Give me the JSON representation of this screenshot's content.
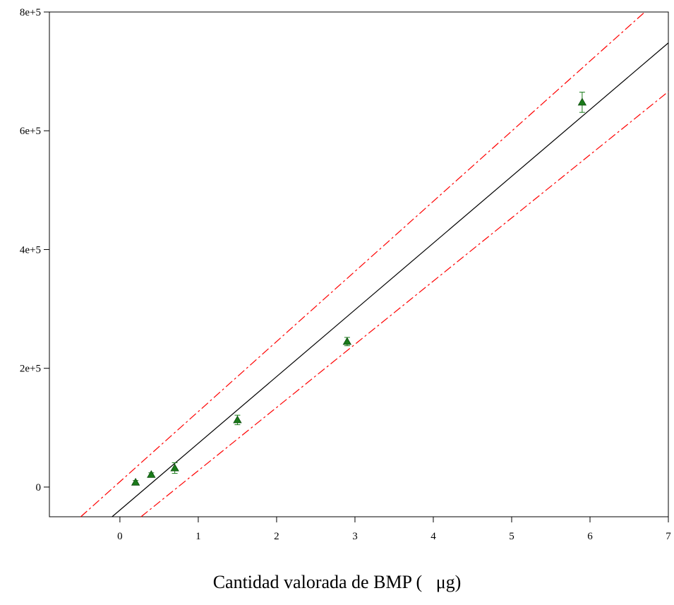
{
  "chart_data": {
    "type": "scatter",
    "title": "",
    "xlabel": "Cantidad valorada de BMP (   μg)",
    "ylabel": "",
    "xlim": [
      -0.9,
      7
    ],
    "ylim": [
      -50000,
      800000
    ],
    "x_ticks": [
      0,
      1,
      2,
      3,
      4,
      5,
      6,
      7
    ],
    "x_tick_labels": [
      "0",
      "1",
      "2",
      "3",
      "4",
      "5",
      "6",
      "7"
    ],
    "y_ticks": [
      0,
      200000,
      400000,
      600000,
      800000
    ],
    "y_tick_labels": [
      "0",
      "2e+5",
      "4e+5",
      "6e+5",
      "8e+5"
    ],
    "grid": false,
    "legend": "none",
    "series": [
      {
        "marker": "triangle",
        "color": "#1a7a1a",
        "x": [
          0.2,
          0.4,
          0.7,
          1.5,
          2.9,
          5.9
        ],
        "y": [
          8000,
          21000,
          32000,
          113000,
          245000,
          648000
        ],
        "error": [
          3000,
          3000,
          9000,
          8000,
          7000,
          17000
        ]
      }
    ],
    "lines": [
      {
        "style": "solid",
        "color": "#000000",
        "points": [
          [
            -0.1,
            -50000
          ],
          [
            7,
            748000
          ]
        ]
      },
      {
        "style": "dashdot",
        "color": "#ff0000",
        "points": [
          [
            -0.5,
            -50000
          ],
          [
            6.7,
            800000
          ]
        ]
      },
      {
        "style": "dashdot",
        "color": "#ff0000",
        "points": [
          [
            0.27,
            -50000
          ],
          [
            7,
            666000
          ]
        ]
      }
    ]
  }
}
